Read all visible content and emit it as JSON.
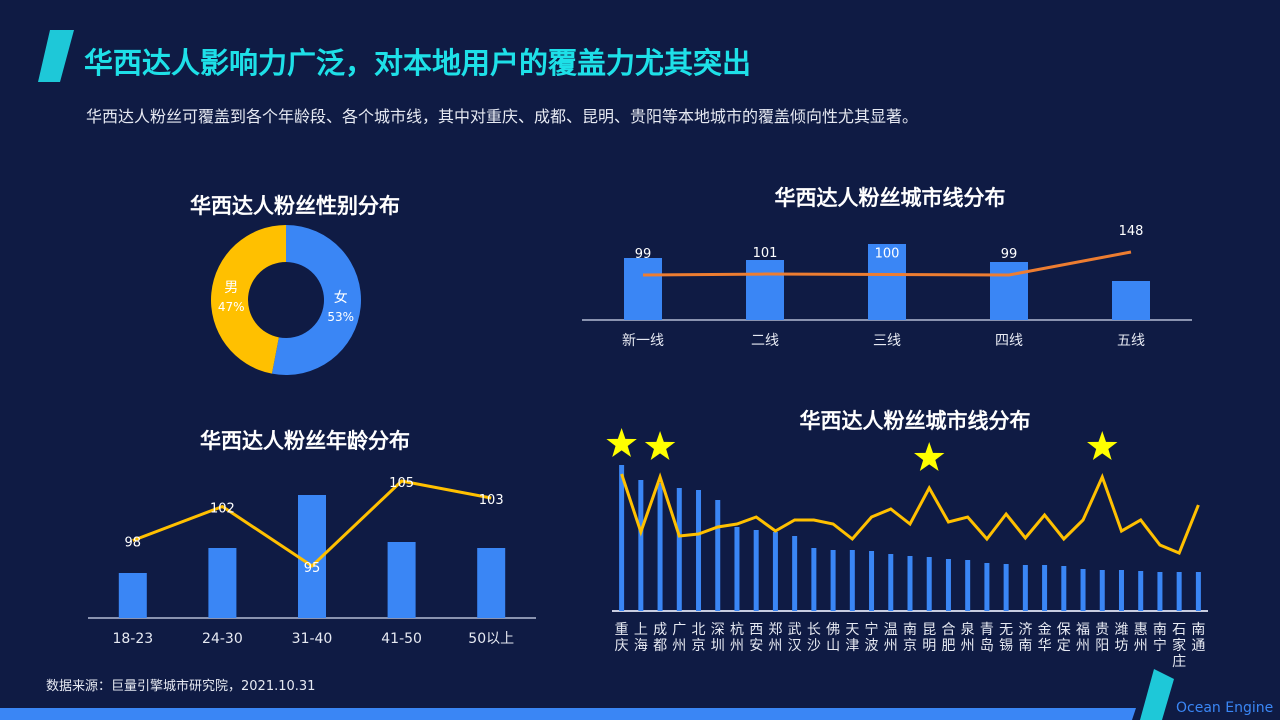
{
  "header": {
    "title": "华西达人影响力广泛，对本地用户的覆盖力尤其突出",
    "subtitle": "华西达人粉丝可覆盖到各个年龄段、各个城市线，其中对重庆、成都、昆明、贵阳等本地城市的覆盖倾向性尤其显著。"
  },
  "footer": {
    "source": "数据来源：巨量引擎城市研究院，2021.10.31",
    "brand": "Ocean Engine"
  },
  "colors": {
    "background": "#0f1b44",
    "title": "#1ee0e8",
    "bar": "#3a86f5",
    "gold": "#ffc000",
    "orange": "#ed7d31",
    "star": "#ffff00"
  },
  "chart_data": [
    {
      "type": "pie",
      "title": "华西达人粉丝性别分布",
      "donut": true,
      "slices": [
        {
          "label": "女",
          "value": 53,
          "text": "53%",
          "color": "#3a86f5"
        },
        {
          "label": "男",
          "value": 47,
          "text": "47%",
          "color": "#ffc000"
        }
      ]
    },
    {
      "type": "bar+line",
      "title": "华西达人粉丝城市线分布",
      "categories": [
        "新一线",
        "二线",
        "三线",
        "四线",
        "五线"
      ],
      "bar_values": [
        62,
        60,
        76,
        58,
        39
      ],
      "line_values": [
        99,
        101,
        100,
        99,
        148
      ],
      "line_labels": [
        "99",
        "101",
        "100",
        "99",
        "148"
      ],
      "line_color": "#ed7d31"
    },
    {
      "type": "bar+line",
      "title": "华西达人粉丝年龄分布",
      "categories": [
        "18-23",
        "24-30",
        "31-40",
        "41-50",
        "50以上"
      ],
      "bar_values": [
        45,
        70,
        123,
        76,
        70
      ],
      "line_values": [
        98,
        102,
        95,
        105,
        103
      ],
      "line_labels": [
        "98",
        "102",
        "95",
        "105",
        "103"
      ],
      "line_color": "#ffc000"
    },
    {
      "type": "bar+line",
      "title": "华西达人粉丝城市线分布",
      "categories": [
        "重庆",
        "上海",
        "成都",
        "广州",
        "北京",
        "深圳",
        "杭州",
        "西安",
        "郑州",
        "武汉",
        "长沙",
        "佛山",
        "天津",
        "宁波",
        "温州",
        "南京",
        "昆明",
        "合肥",
        "泉州",
        "青岛",
        "无锡",
        "济南",
        "金华",
        "保定",
        "福州",
        "贵阳",
        "潍坊",
        "惠州",
        "南宁",
        "石家庄",
        "南通"
      ],
      "bar_values": [
        146,
        131,
        128,
        123,
        121,
        111,
        84,
        81,
        79,
        75,
        63,
        61,
        61,
        60,
        57,
        55,
        54,
        52,
        51,
        48,
        47,
        46,
        46,
        45,
        42,
        41,
        41,
        40,
        39,
        39,
        39
      ],
      "line_values": [
        126,
        68,
        123,
        64,
        66,
        73,
        76,
        83,
        69,
        80,
        80,
        76,
        61,
        83,
        91,
        76,
        112,
        78,
        83,
        61,
        86,
        62,
        85,
        61,
        80,
        123,
        69,
        80,
        55,
        47,
        95
      ],
      "highlighted": [
        "重庆",
        "成都",
        "昆明",
        "贵阳"
      ],
      "line_color": "#ffc000"
    }
  ]
}
